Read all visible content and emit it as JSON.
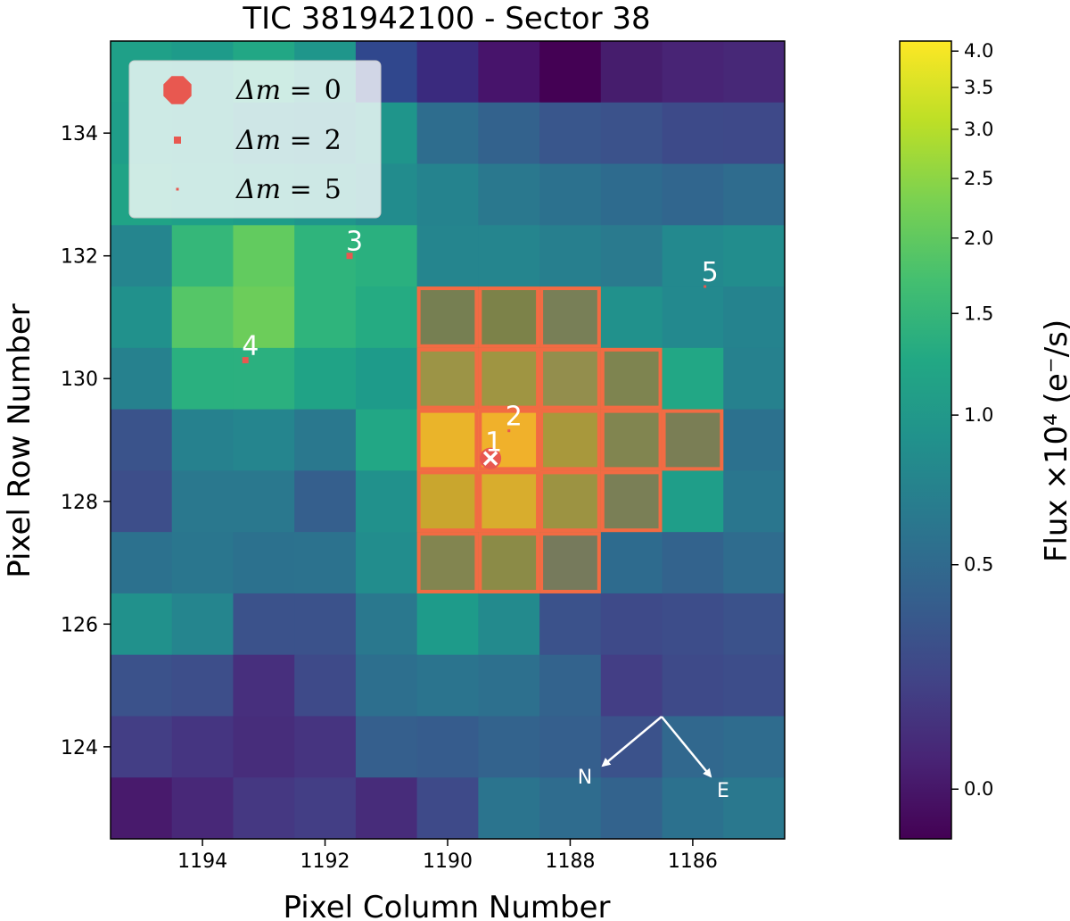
{
  "chart_data": {
    "type": "heatmap",
    "title": "TIC 381942100 - Sector 38",
    "xlabel": "Pixel Column Number",
    "ylabel": "Pixel Row Number",
    "xlim": [
      1195.5,
      1184.5
    ],
    "ylim": [
      122.5,
      135.5
    ],
    "x_reversed": true,
    "xticks": [
      1194,
      1192,
      1190,
      1188,
      1186
    ],
    "yticks": [
      124,
      126,
      128,
      130,
      132,
      134
    ],
    "columns": [
      1195,
      1194,
      1193,
      1192,
      1191,
      1190,
      1189,
      1188,
      1187,
      1186,
      1185
    ],
    "rows": [
      135,
      134,
      133,
      132,
      131,
      130,
      129,
      128,
      127,
      126,
      125,
      124,
      123
    ],
    "grid_colors": [
      [
        "#1fa088",
        "#1e9b8a",
        "#22a785",
        "#1f968b",
        "#30478d",
        "#3a2a7e",
        "#47146b",
        "#440154",
        "#461d6d",
        "#482475",
        "#472877"
      ],
      [
        "#1f9e89",
        "#1f9a8a",
        "#218f8d",
        "#23898e",
        "#1f958b",
        "#2e6d8e",
        "#33628d",
        "#39568c",
        "#3b528b",
        "#3d4a89",
        "#3e4989"
      ],
      [
        "#20a386",
        "#1fa088",
        "#1e9d89",
        "#1f968b",
        "#228c8d",
        "#25838e",
        "#2a788e",
        "#2c718e",
        "#2e6b8e",
        "#31668e",
        "#2f6c8e"
      ],
      [
        "#25858e",
        "#35b779",
        "#62cb5f",
        "#2fb47c",
        "#2ab07f",
        "#25858e",
        "#25858e",
        "#277f8e",
        "#2a7a8e",
        "#23898e",
        "#228d8d"
      ],
      [
        "#21918c",
        "#55c667",
        "#6ccd5a",
        "#2fb47c",
        "#25ab82",
        "#767f52",
        "#7c8249",
        "#787f57",
        "#21918c",
        "#23898e",
        "#25838e"
      ],
      [
        "#26818e",
        "#2ab07f",
        "#2bb07f",
        "#20a386",
        "#1e9b8a",
        "#9c9446",
        "#9f9542",
        "#938e4d",
        "#7e8450",
        "#22a785",
        "#26818e"
      ],
      [
        "#3a538b",
        "#26818e",
        "#25858e",
        "#2a788e",
        "#22a785",
        "#eab42a",
        "#f0b12b",
        "#a8983c",
        "#818550",
        "#7a7e55",
        "#2c718e"
      ],
      [
        "#3d4e8a",
        "#2a788e",
        "#2a788e",
        "#355f8d",
        "#21918c",
        "#c9a62e",
        "#d8ad2d",
        "#9c9342",
        "#7a7f56",
        "#1f9e89",
        "#2a768e"
      ],
      [
        "#2c718e",
        "#2a768e",
        "#2c718e",
        "#2c728e",
        "#228d8d",
        "#828550",
        "#8b8b47",
        "#767a5c",
        "#2e6b8e",
        "#33638d",
        "#2f6c8e"
      ],
      [
        "#21918c",
        "#25858e",
        "#3b528b",
        "#3b528b",
        "#2a788e",
        "#1e9b8a",
        "#238a8d",
        "#3b528b",
        "#3e4a89",
        "#3d4d8a",
        "#3b528b"
      ],
      [
        "#3b528b",
        "#3d4e8a",
        "#472f7d",
        "#3e4a89",
        "#2d6f8e",
        "#2b748e",
        "#2d708e",
        "#33638d",
        "#433e85",
        "#3e4a89",
        "#3d4d8a"
      ],
      [
        "#433e85",
        "#453581",
        "#472d7b",
        "#463480",
        "#355f8d",
        "#365c8d",
        "#33638d",
        "#355f8d",
        "#3b528b",
        "#31688e",
        "#2f6c8e"
      ],
      [
        "#481a6c",
        "#482878",
        "#453882",
        "#433e85",
        "#472c7a",
        "#3e4a89",
        "#2b748e",
        "#2f6c8e",
        "#33638d",
        "#2c718e",
        "#2a788e"
      ]
    ],
    "aperture_pixels": [
      [
        1190,
        131
      ],
      [
        1189,
        131
      ],
      [
        1188,
        131
      ],
      [
        1190,
        130
      ],
      [
        1189,
        130
      ],
      [
        1188,
        130
      ],
      [
        1187,
        130
      ],
      [
        1190,
        129
      ],
      [
        1189,
        129
      ],
      [
        1188,
        129
      ],
      [
        1187,
        129
      ],
      [
        1186,
        129
      ],
      [
        1190,
        128
      ],
      [
        1189,
        128
      ],
      [
        1188,
        128
      ],
      [
        1187,
        128
      ],
      [
        1190,
        127
      ],
      [
        1189,
        127
      ],
      [
        1188,
        127
      ]
    ],
    "stars": [
      {
        "label": "1",
        "x": 1189.3,
        "y": 128.7,
        "dm": 0
      },
      {
        "label": "2",
        "x": 1189.0,
        "y": 129.15,
        "dm": 5
      },
      {
        "label": "3",
        "x": 1191.6,
        "y": 132.0,
        "dm": 2
      },
      {
        "label": "4",
        "x": 1193.3,
        "y": 130.3,
        "dm": 2
      },
      {
        "label": "5",
        "x": 1185.8,
        "y": 131.5,
        "dm": 5
      }
    ],
    "target_marker": {
      "x": 1189.3,
      "y": 128.7,
      "symbol": "x"
    },
    "legend": {
      "position": "top-left",
      "entries": [
        {
          "label_prefix": "Δm =",
          "value": "0"
        },
        {
          "label_prefix": "Δm =",
          "value": "2"
        },
        {
          "label_prefix": "Δm =",
          "value": "5"
        }
      ]
    },
    "compass": {
      "n_label": "N",
      "e_label": "E"
    },
    "colorbar": {
      "label": "Flux ×10⁴ (e⁻/s)",
      "ticks": [
        4.0,
        3.5,
        3.0,
        2.5,
        2.0,
        1.5,
        1.0,
        0.5,
        0.0
      ],
      "tick_labels": [
        "4.0",
        "3.5",
        "3.0",
        "2.5",
        "2.0",
        "1.5",
        "1.0",
        "0.5",
        "0.0"
      ],
      "range": [
        -0.1,
        4.15
      ],
      "colormap": "viridis"
    }
  },
  "colors": {
    "aperture": "#f26b43",
    "star_marker": "#e85850",
    "annotation": "#ffffff"
  }
}
